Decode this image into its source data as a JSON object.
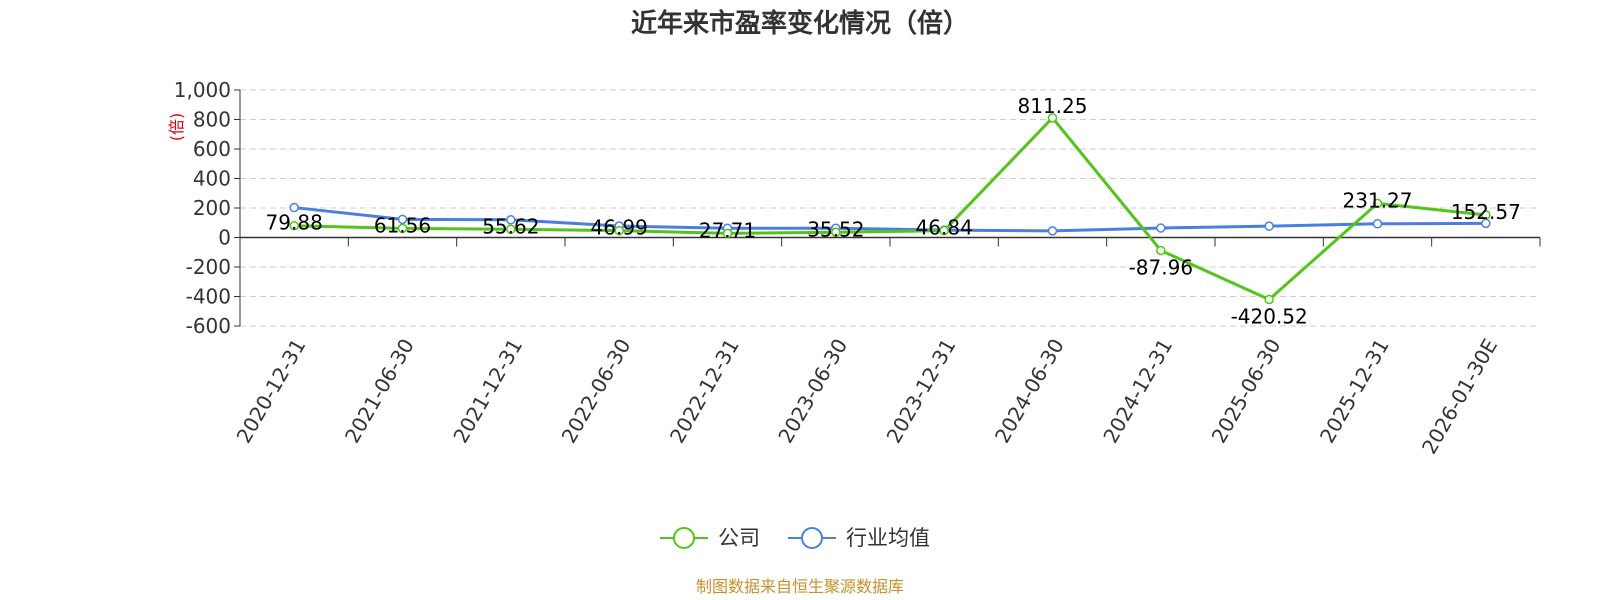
{
  "chart_data": {
    "type": "line",
    "title": "近年来市盈率变化情况（倍）",
    "ylabel": "(倍)",
    "categories": [
      "2020-12-31",
      "2021-06-30",
      "2021-12-31",
      "2022-06-30",
      "2022-12-31",
      "2023-06-30",
      "2023-12-31",
      "2024-06-30",
      "2024-12-31",
      "2025-06-30",
      "2025-12-31",
      "2026-01-30E"
    ],
    "y_ticks": [
      "1,000",
      "800",
      "600",
      "400",
      "200",
      "0",
      "-200",
      "-400",
      "-600"
    ],
    "ylim": [
      -600,
      1000
    ],
    "grid": true,
    "legend_position": "bottom-center",
    "series": [
      {
        "name": "公司",
        "color": "#52c41a",
        "values": [
          79.88,
          61.56,
          55.62,
          46.99,
          27.71,
          35.52,
          46.84,
          811.25,
          -87.96,
          -420.52,
          231.27,
          152.57
        ],
        "labels": [
          "79.88",
          "61.56",
          "55.62",
          "46.99",
          "27.71",
          "35.52",
          "46.84",
          "811.25",
          "-87.96",
          "-420.52",
          "231.27",
          "152.57"
        ]
      },
      {
        "name": "行业均值",
        "color": "#4a7fe0",
        "values": [
          203,
          123,
          120,
          78,
          63,
          63,
          50,
          45,
          64,
          77,
          93,
          96
        ]
      }
    ]
  },
  "source": "制图数据来自恒生聚源数据库"
}
